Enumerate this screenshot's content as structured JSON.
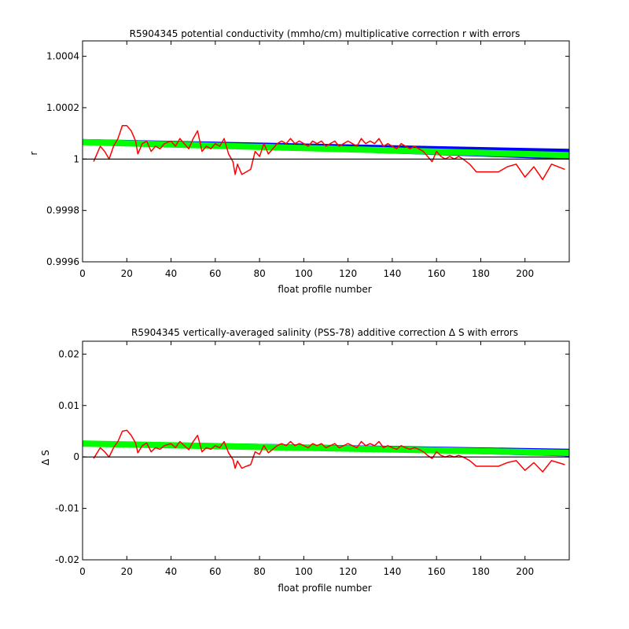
{
  "chart_data": [
    {
      "type": "line",
      "title": "R5904345 potential conductivity (mmho/cm) multiplicative correction r with errors",
      "xlabel": "float profile number",
      "ylabel": "r",
      "xlim": [
        0,
        220
      ],
      "ylim": [
        0.9996,
        1.00046
      ],
      "xticks": [
        0,
        20,
        40,
        60,
        80,
        100,
        120,
        140,
        160,
        180,
        200
      ],
      "xtick_labels": [
        "0",
        "20",
        "40",
        "60",
        "80",
        "100",
        "120",
        "140",
        "160",
        "180",
        "200"
      ],
      "yticks": [
        0.9996,
        0.9998,
        1.0,
        1.0002,
        1.0004
      ],
      "ytick_labels": [
        "0.9996",
        "0.9998",
        "1",
        "1.0002",
        "1.0004"
      ],
      "reference_line": 1.0,
      "grid": false,
      "series": [
        {
          "color": "#0000ff",
          "style": "band",
          "x": [
            0,
            220
          ],
          "y": [
            1.000078,
            1.00004
          ],
          "y_low": [
            1.000062,
            0.999998
          ]
        },
        {
          "color": "#00ff00",
          "style": "thick-line",
          "x": [
            0,
            220
          ],
          "y": [
            1.000066,
            1.000015
          ]
        },
        {
          "color": "#ff0000",
          "style": "line",
          "x": [
            5,
            8,
            10,
            12,
            14,
            16,
            18,
            20,
            22,
            24,
            25,
            27,
            29,
            31,
            33,
            35,
            37,
            40,
            42,
            44,
            46,
            48,
            50,
            52,
            54,
            56,
            58,
            60,
            62,
            64,
            66,
            68,
            69,
            70,
            72,
            74,
            76,
            78,
            80,
            82,
            84,
            86,
            88,
            90,
            92,
            94,
            96,
            98,
            100,
            102,
            104,
            106,
            108,
            110,
            112,
            114,
            116,
            118,
            120,
            122,
            124,
            126,
            128,
            130,
            132,
            134,
            136,
            138,
            140,
            142,
            144,
            146,
            148,
            150,
            152,
            154,
            156,
            158,
            160,
            162,
            164,
            166,
            168,
            170,
            172,
            175,
            178,
            180,
            184,
            188,
            192,
            196,
            200,
            204,
            208,
            212,
            215,
            218
          ],
          "y": [
            0.99999,
            1.00005,
            1.00003,
            1.0,
            1.00005,
            1.00008,
            1.00013,
            1.00013,
            1.00011,
            1.00007,
            1.00002,
            1.00006,
            1.00007,
            1.00003,
            1.00005,
            1.00004,
            1.00006,
            1.00007,
            1.00005,
            1.00008,
            1.00006,
            1.00004,
            1.00008,
            1.00011,
            1.00003,
            1.00005,
            1.00004,
            1.00006,
            1.00005,
            1.00008,
            1.00002,
            0.99999,
            0.99994,
            0.99998,
            0.99994,
            0.99995,
            0.99996,
            1.00003,
            1.00001,
            1.00006,
            1.00002,
            1.00004,
            1.00006,
            1.00007,
            1.00006,
            1.00008,
            1.00006,
            1.00007,
            1.00006,
            1.00005,
            1.00007,
            1.00006,
            1.00007,
            1.00005,
            1.00006,
            1.00007,
            1.00005,
            1.00006,
            1.00007,
            1.00006,
            1.00005,
            1.00008,
            1.00006,
            1.00007,
            1.00006,
            1.00008,
            1.00005,
            1.00006,
            1.00005,
            1.00004,
            1.00006,
            1.00005,
            1.00004,
            1.00005,
            1.00004,
            1.00003,
            1.00001,
            0.99999,
            1.00003,
            1.00001,
            1.0,
            1.00001,
            1.0,
            1.00001,
            1.0,
            0.99998,
            0.99995,
            0.99995,
            0.99995,
            0.99995,
            0.99997,
            0.99998,
            0.99993,
            0.99997,
            0.99992,
            0.99998,
            0.99997,
            0.99996
          ]
        }
      ]
    },
    {
      "type": "line",
      "title": "R5904345 vertically-averaged salinity (PSS-78) additive correction Δ S with errors",
      "xlabel": "float profile number",
      "ylabel": "Δ S",
      "xlim": [
        0,
        220
      ],
      "ylim": [
        -0.02,
        0.0225
      ],
      "xticks": [
        0,
        20,
        40,
        60,
        80,
        100,
        120,
        140,
        160,
        180,
        200
      ],
      "xtick_labels": [
        "0",
        "20",
        "40",
        "60",
        "80",
        "100",
        "120",
        "140",
        "160",
        "180",
        "200"
      ],
      "yticks": [
        -0.02,
        -0.01,
        0,
        0.01,
        0.02
      ],
      "ytick_labels": [
        "-0.02",
        "-0.01",
        "0",
        "0.01",
        "0.02"
      ],
      "reference_line": 0,
      "grid": false,
      "series": [
        {
          "color": "#0000ff",
          "style": "band",
          "x": [
            0,
            220
          ],
          "y": [
            0.0031,
            0.0016
          ],
          "y_low": [
            0.0025,
            0.0001
          ]
        },
        {
          "color": "#00ff00",
          "style": "thick-line",
          "x": [
            0,
            220
          ],
          "y": [
            0.0026,
            0.0008
          ]
        },
        {
          "color": "#ff0000",
          "style": "line",
          "x": [
            5,
            8,
            10,
            12,
            14,
            16,
            18,
            20,
            22,
            24,
            25,
            27,
            29,
            31,
            33,
            35,
            37,
            40,
            42,
            44,
            46,
            48,
            50,
            52,
            54,
            56,
            58,
            60,
            62,
            64,
            66,
            68,
            69,
            70,
            72,
            74,
            76,
            78,
            80,
            82,
            84,
            86,
            88,
            90,
            92,
            94,
            96,
            98,
            100,
            102,
            104,
            106,
            108,
            110,
            112,
            114,
            116,
            118,
            120,
            122,
            124,
            126,
            128,
            130,
            132,
            134,
            136,
            138,
            140,
            142,
            144,
            146,
            148,
            150,
            152,
            154,
            156,
            158,
            160,
            162,
            164,
            166,
            168,
            170,
            172,
            175,
            178,
            180,
            184,
            188,
            192,
            196,
            200,
            204,
            208,
            212,
            215,
            218
          ],
          "y": [
            -0.0003,
            0.0018,
            0.001,
            0.0,
            0.0018,
            0.003,
            0.005,
            0.0052,
            0.0042,
            0.0027,
            0.0008,
            0.0022,
            0.0027,
            0.001,
            0.0018,
            0.0015,
            0.0022,
            0.0026,
            0.0018,
            0.003,
            0.0022,
            0.0014,
            0.003,
            0.0042,
            0.001,
            0.0018,
            0.0015,
            0.0022,
            0.0018,
            0.003,
            0.0008,
            -0.0005,
            -0.0022,
            -0.0008,
            -0.0022,
            -0.0018,
            -0.0015,
            0.001,
            0.0005,
            0.0022,
            0.0008,
            0.0015,
            0.0022,
            0.0026,
            0.0022,
            0.003,
            0.0022,
            0.0026,
            0.0022,
            0.0018,
            0.0026,
            0.0022,
            0.0026,
            0.0018,
            0.0022,
            0.0026,
            0.0018,
            0.0022,
            0.0026,
            0.0022,
            0.0018,
            0.003,
            0.0022,
            0.0026,
            0.0022,
            0.003,
            0.0018,
            0.0022,
            0.0018,
            0.0015,
            0.0022,
            0.0018,
            0.0015,
            0.0018,
            0.0015,
            0.001,
            0.0003,
            -0.0003,
            0.001,
            0.0003,
            0.0,
            0.0003,
            0.0,
            0.0003,
            0.0,
            -0.0007,
            -0.0018,
            -0.0018,
            -0.0018,
            -0.0018,
            -0.0011,
            -0.0007,
            -0.0026,
            -0.0011,
            -0.0029,
            -0.0007,
            -0.0011,
            -0.0015
          ]
        }
      ]
    }
  ]
}
